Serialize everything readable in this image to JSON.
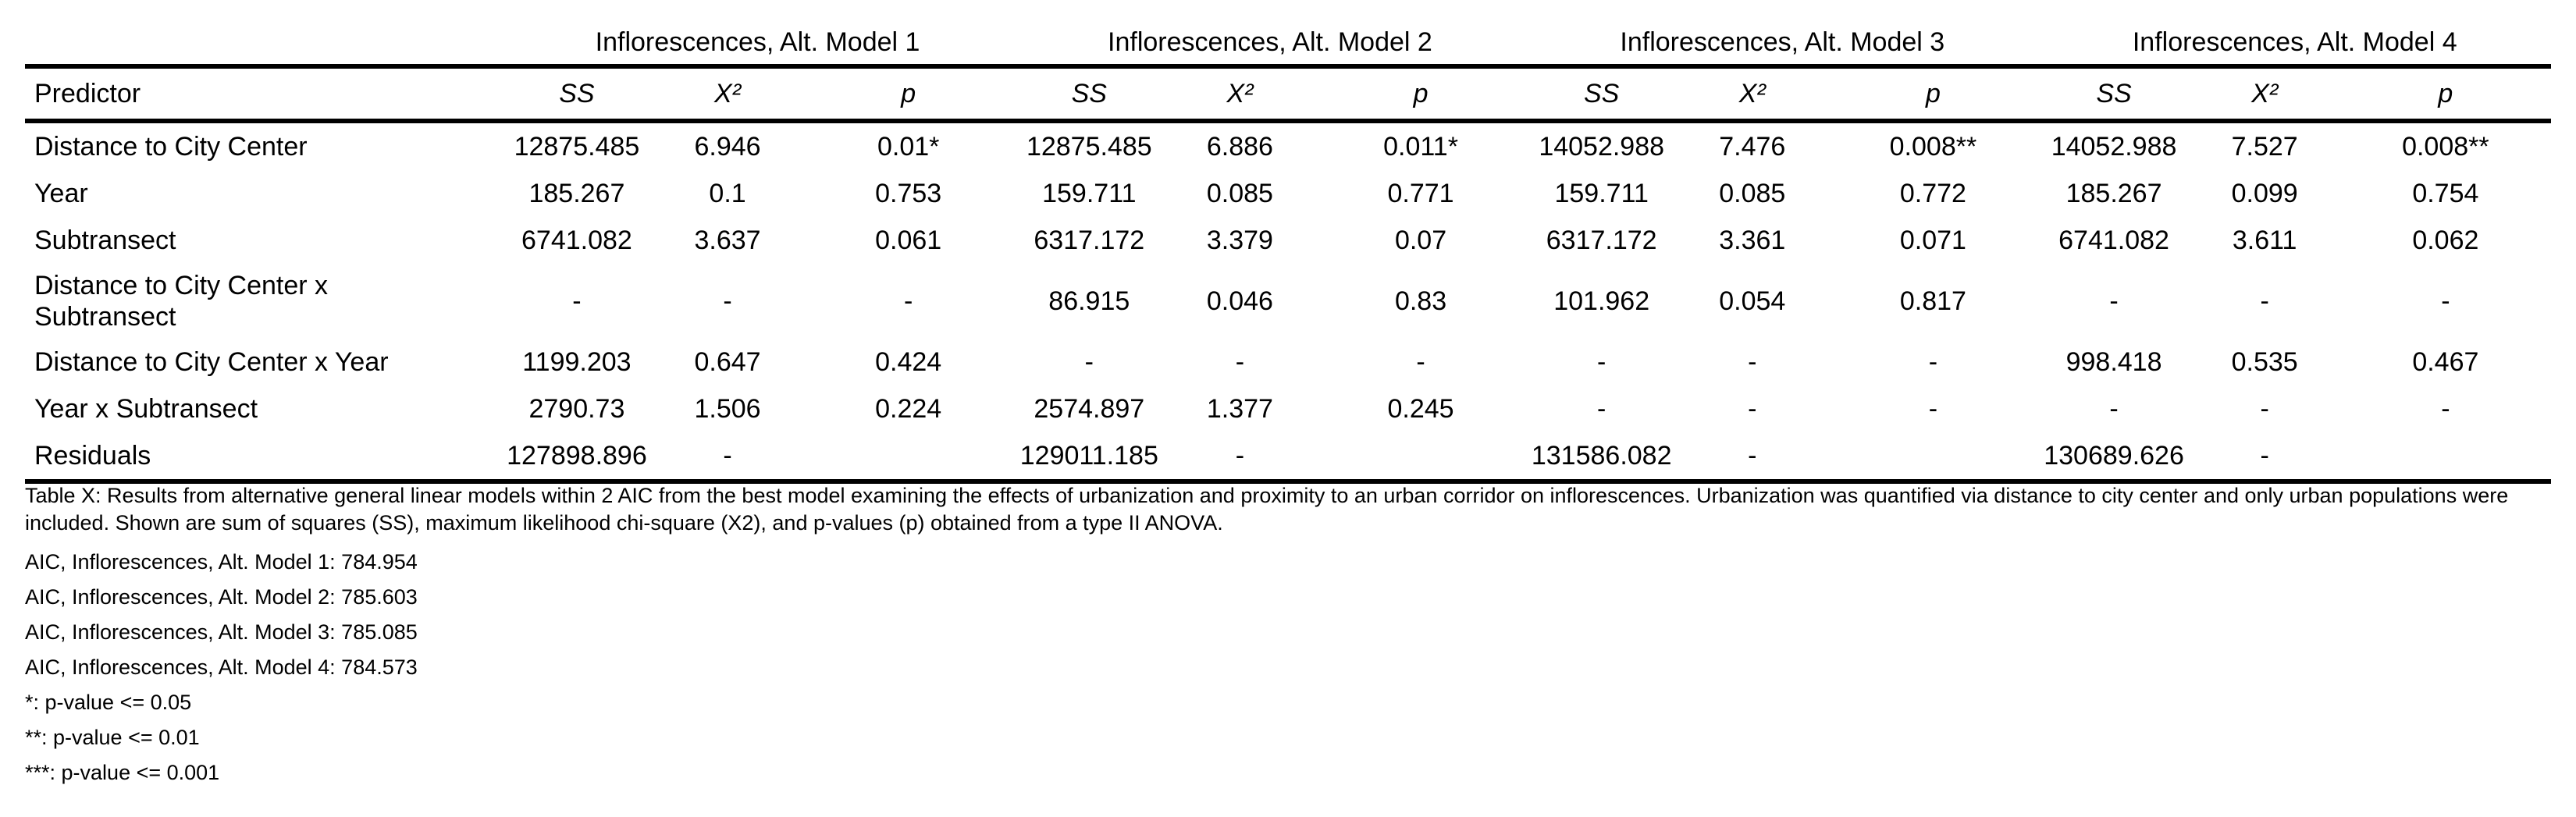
{
  "table": {
    "groups": [
      "Inflorescences, Alt. Model 1",
      "Inflorescences, Alt. Model 2",
      "Inflorescences, Alt. Model 3",
      "Inflorescences, Alt. Model 4"
    ],
    "predictor_header": "Predictor",
    "stat_headers": [
      "SS",
      "X²",
      "p"
    ],
    "rows": [
      {
        "label": "Distance to City Center",
        "cells": [
          "12875.485",
          "6.946",
          "0.01*",
          "12875.485",
          "6.886",
          "0.011*",
          "14052.988",
          "7.476",
          "0.008**",
          "14052.988",
          "7.527",
          "0.008**"
        ]
      },
      {
        "label": "Year",
        "cells": [
          "185.267",
          "0.1",
          "0.753",
          "159.711",
          "0.085",
          "0.771",
          "159.711",
          "0.085",
          "0.772",
          "185.267",
          "0.099",
          "0.754"
        ]
      },
      {
        "label": "Subtransect",
        "cells": [
          "6741.082",
          "3.637",
          "0.061",
          "6317.172",
          "3.379",
          "0.07",
          "6317.172",
          "3.361",
          "0.071",
          "6741.082",
          "3.611",
          "0.062"
        ]
      },
      {
        "label_line1": "Distance to City Center x",
        "label_line2": "Subtransect",
        "cells": [
          "-",
          "-",
          "-",
          "86.915",
          "0.046",
          "0.83",
          "101.962",
          "0.054",
          "0.817",
          "-",
          "-",
          "-"
        ]
      },
      {
        "label": "Distance to City Center x Year",
        "cells": [
          "1199.203",
          "0.647",
          "0.424",
          "-",
          "-",
          "-",
          "-",
          "-",
          "-",
          "998.418",
          "0.535",
          "0.467"
        ]
      },
      {
        "label": "Year x Subtransect",
        "cells": [
          "2790.73",
          "1.506",
          "0.224",
          "2574.897",
          "1.377",
          "0.245",
          "-",
          "-",
          "-",
          "-",
          "-",
          "-"
        ]
      },
      {
        "label": "Residuals",
        "cells": [
          "127898.896",
          "-",
          "",
          "129011.185",
          "-",
          "",
          "131586.082",
          "-",
          "",
          "130689.626",
          "-",
          ""
        ]
      }
    ]
  },
  "notes": {
    "caption": "Table X: Results from alternative general linear models within 2 AIC from the best model examining the effects of urbanization and proximity to an urban corridor on inflorescences. Urbanization was quantified via distance to city center and only urban populations were included. Shown are sum of squares (SS), maximum likelihood chi-square (X2), and p-values (p) obtained from a type II ANOVA.",
    "aic": [
      "AIC, Inflorescences, Alt. Model 1: 784.954",
      "AIC, Inflorescences, Alt. Model 2: 785.603",
      "AIC, Inflorescences, Alt. Model 3: 785.085",
      "AIC, Inflorescences, Alt. Model 4: 784.573"
    ],
    "significance": [
      "*: p-value <= 0.05",
      "**: p-value <= 0.01",
      "***: p-value <= 0.001"
    ]
  }
}
